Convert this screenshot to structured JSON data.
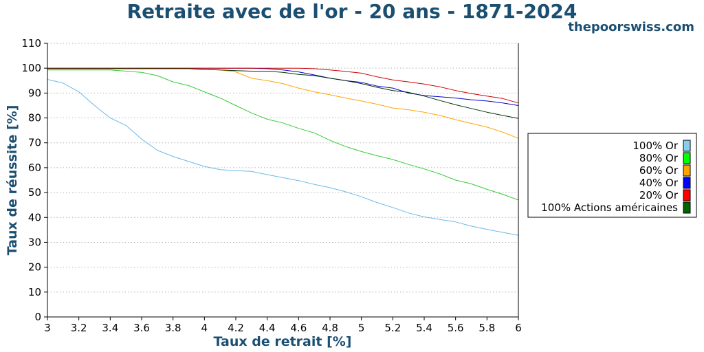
{
  "header": {
    "title": "Retraite avec de l'or - 20 ans - 1871-2024",
    "brand": "thepoorswiss.com"
  },
  "chart_data": {
    "type": "line",
    "title": "Retraite avec de l'or - 20 ans - 1871-2024",
    "xlabel": "Taux de retrait [%]",
    "ylabel": "Taux de réussite [%]",
    "xlim": [
      3,
      6
    ],
    "ylim": [
      0,
      110
    ],
    "xticks": [
      "3",
      "3.2",
      "3.4",
      "3.6",
      "3.8",
      "4",
      "4.2",
      "4.4",
      "4.6",
      "4.8",
      "5",
      "5.2",
      "5.4",
      "5.6",
      "5.8",
      "6"
    ],
    "yticks": [
      "0",
      "10",
      "20",
      "30",
      "40",
      "50",
      "60",
      "70",
      "80",
      "90",
      "100",
      "110"
    ],
    "grid": "horizontal dotted",
    "legend_position": "right",
    "x": [
      3.0,
      3.1,
      3.2,
      3.3,
      3.4,
      3.5,
      3.6,
      3.7,
      3.8,
      3.9,
      4.0,
      4.1,
      4.2,
      4.3,
      4.4,
      4.5,
      4.6,
      4.7,
      4.8,
      4.9,
      5.0,
      5.1,
      5.2,
      5.3,
      5.4,
      5.5,
      5.6,
      5.7,
      5.8,
      5.9,
      6.0
    ],
    "series": [
      {
        "name": "100% Or",
        "color": "#87ceeb",
        "line_color": "#6bb8e8",
        "values": [
          95.5,
          94,
          90.5,
          85,
          80,
          77,
          71.5,
          67,
          64.5,
          62.5,
          60.5,
          59.2,
          58.8,
          58.5,
          57.2,
          56,
          54.8,
          53.3,
          52,
          50.3,
          48.3,
          46,
          44,
          41.8,
          40.2,
          39.2,
          38.2,
          36.5,
          35.2,
          34,
          32.8
        ]
      },
      {
        "name": "80% Or",
        "color": "#00ff00",
        "line_color": "#33cc33",
        "values": [
          99.3,
          99.3,
          99.3,
          99.3,
          99.3,
          98.8,
          98.3,
          97,
          94.5,
          93,
          90.5,
          88,
          85,
          82,
          79.5,
          78,
          75.8,
          74,
          71,
          68.5,
          66.5,
          64.8,
          63.3,
          61.3,
          59.5,
          57.5,
          55,
          53.5,
          51.3,
          49.3,
          47
        ]
      },
      {
        "name": "60% Or",
        "color": "#ffa500",
        "line_color": "#ffa500",
        "values": [
          99.8,
          99.8,
          99.8,
          99.8,
          99.8,
          99.8,
          99.8,
          99.8,
          99.8,
          99.8,
          99.5,
          99.3,
          98.5,
          96,
          95,
          93.8,
          92,
          90.5,
          89.3,
          88,
          86.8,
          85.5,
          84,
          83.3,
          82.3,
          81,
          79.3,
          77.8,
          76.3,
          74.3,
          71.8
        ]
      },
      {
        "name": "40% Or",
        "color": "#0000ff",
        "line_color": "#0000cc",
        "values": [
          100,
          100,
          100,
          100,
          100,
          100,
          100,
          100,
          100,
          100,
          100,
          100,
          100,
          100,
          99.8,
          99.3,
          98.5,
          97.3,
          96,
          95,
          94.3,
          92.8,
          92,
          90,
          89,
          88.5,
          88,
          87.3,
          86.8,
          86,
          85
        ]
      },
      {
        "name": "20% Or",
        "color": "#ff0000",
        "line_color": "#cc0000",
        "values": [
          100,
          100,
          100,
          100,
          100,
          100,
          100,
          100,
          100,
          100,
          100,
          100,
          100,
          100,
          100,
          100,
          100,
          99.8,
          99.3,
          98.7,
          98,
          96.5,
          95.3,
          94.5,
          93.6,
          92.5,
          91,
          89.8,
          88.8,
          87.8,
          86
        ]
      },
      {
        "name": "100% Actions américaines",
        "color": "#006400",
        "line_color": "#003300",
        "values": [
          99.8,
          99.8,
          99.8,
          99.8,
          99.8,
          99.8,
          99.8,
          99.8,
          99.8,
          99.8,
          99.5,
          99.3,
          99,
          98.8,
          98.8,
          98.3,
          97.5,
          97,
          96,
          95,
          93.8,
          92.3,
          91,
          90.3,
          88.8,
          87,
          85.3,
          83.8,
          82.3,
          81,
          79.8
        ]
      }
    ]
  }
}
